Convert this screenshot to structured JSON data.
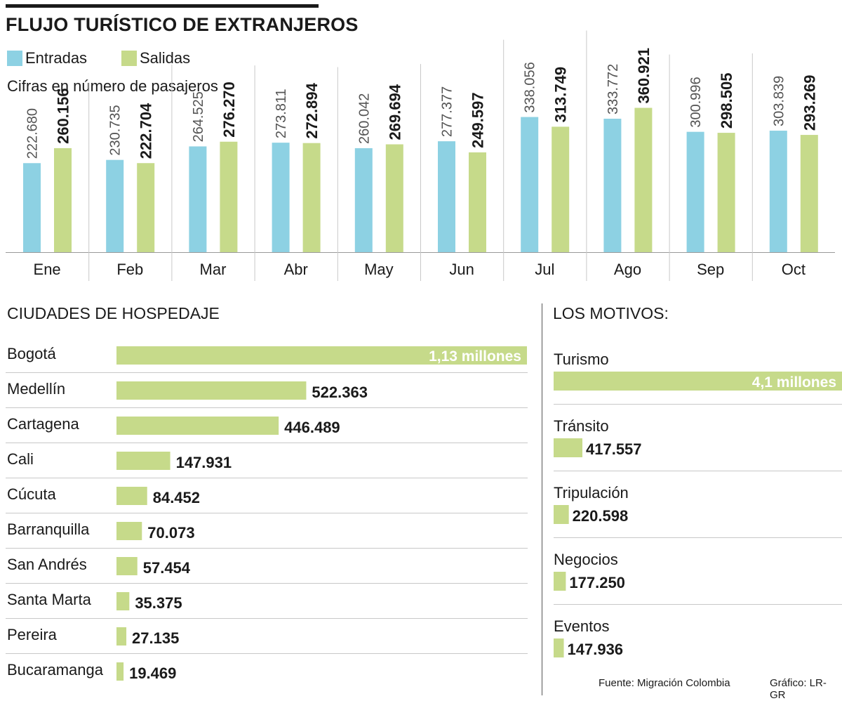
{
  "title": "FLUJO TURÍSTICO DE EXTRANJEROS",
  "colors": {
    "entradas": "#8dd1e3",
    "salidas": "#c6da8a",
    "text": "#1a1a1a",
    "grid": "#c8c8c8"
  },
  "chart_data": [
    {
      "type": "bar",
      "title": "FLUJO TURÍSTICO DE EXTRANJEROS",
      "subtitle": "Cifras en número de pasajeros",
      "categories": [
        "Ene",
        "Feb",
        "Mar",
        "Abr",
        "May",
        "Jun",
        "Jul",
        "Ago",
        "Sep",
        "Oct"
      ],
      "series": [
        {
          "name": "Entradas",
          "values": [
            222680,
            230735,
            264525,
            273811,
            260042,
            277377,
            338056,
            333772,
            300996,
            303839
          ],
          "labels": [
            "222.680",
            "230.735",
            "264.525",
            "273.811",
            "260.042",
            "277.377",
            "338.056",
            "333.772",
            "300.996",
            "303.839"
          ]
        },
        {
          "name": "Salidas",
          "values": [
            260156,
            222704,
            276270,
            272894,
            269694,
            249597,
            313749,
            360921,
            298505,
            293269
          ],
          "labels": [
            "260.156",
            "222.704",
            "276.270",
            "272.894",
            "269.694",
            "249.597",
            "313.749",
            "360.921",
            "298.505",
            "293.269"
          ]
        }
      ],
      "ylim": [
        0,
        400000
      ],
      "legend": "top-left"
    },
    {
      "type": "bar",
      "orientation": "horizontal",
      "title": "CIUDADES DE HOSPEDAJE",
      "categories": [
        "Bogotá",
        "Medellín",
        "Cartagena",
        "Cali",
        "Cúcuta",
        "Barranquilla",
        "San Andrés",
        "Santa Marta",
        "Pereira",
        "Bucaramanga"
      ],
      "values": [
        1130000,
        522363,
        446489,
        147931,
        84452,
        70073,
        57454,
        35375,
        27135,
        19469
      ],
      "labels": [
        "1,13 millones",
        "522.363",
        "446.489",
        "147.931",
        "84.452",
        "70.073",
        "57.454",
        "35.375",
        "27.135",
        "19.469"
      ]
    },
    {
      "type": "bar",
      "orientation": "horizontal",
      "title": "LOS MOTIVOS:",
      "categories": [
        "Turismo",
        "Tránsito",
        "Tripulación",
        "Negocios",
        "Eventos"
      ],
      "values": [
        4100000,
        417557,
        220598,
        177250,
        147936
      ],
      "labels": [
        "4,1 millones",
        "417.557",
        "220.598",
        "177.250",
        "147.936"
      ]
    }
  ],
  "footer": {
    "source": "Fuente: Migración Colombia",
    "credit": "Gráfico: LR-GR"
  }
}
